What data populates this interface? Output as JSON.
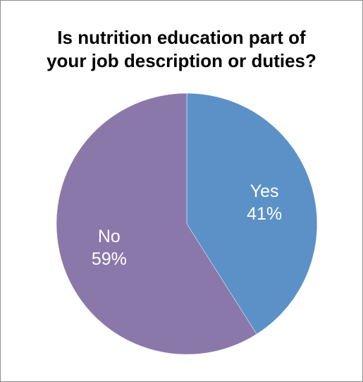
{
  "chart_data": {
    "type": "pie",
    "title_lines": [
      "Is nutrition education part of",
      "your job description or duties?"
    ],
    "slices": [
      {
        "label": "Yes",
        "value": 41,
        "value_text": "41%",
        "color": "#5b91c7"
      },
      {
        "label": "No",
        "value": 59,
        "value_text": "59%",
        "color": "#8b78ab"
      }
    ],
    "start_angle": "12 o'clock",
    "direction": "clockwise",
    "legend": "none",
    "data_labels": "inside"
  }
}
